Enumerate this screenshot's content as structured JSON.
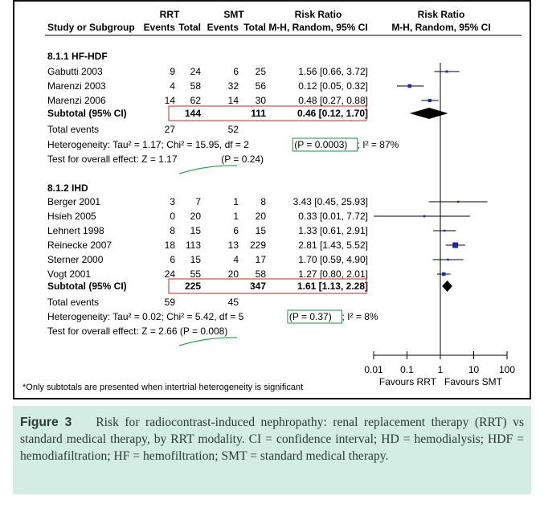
{
  "chart_data": {
    "type": "forest",
    "headers": {
      "group1": "RRT",
      "group2": "SMT",
      "col_risk": "Risk Ratio",
      "col_plot": "Risk Ratio",
      "study": "Study or Subgroup",
      "events": "Events",
      "total": "Total",
      "method": "M-H, Random, 95% CI"
    },
    "x_axis": {
      "scale": "log",
      "ticks": [
        0.01,
        0.1,
        1,
        10,
        100
      ],
      "tick_labels": [
        "0.01",
        "0.1",
        "1",
        "10",
        "100"
      ],
      "favours_left": "Favours RRT",
      "favours_right": "Favours SMT"
    },
    "subgroups": [
      {
        "title": "8.1.1 HF-HDF",
        "studies": [
          {
            "name": "Gabutti 2003",
            "e1": "9",
            "n1": "24",
            "e2": "6",
            "n2": "25",
            "ci_text": "1.56 [0.66, 3.72]",
            "rr": 1.56,
            "lo": 0.66,
            "hi": 3.72
          },
          {
            "name": "Marenzi 2003",
            "e1": "4",
            "n1": "58",
            "e2": "32",
            "n2": "56",
            "ci_text": "0.12 [0.05, 0.32]",
            "rr": 0.12,
            "lo": 0.05,
            "hi": 0.32
          },
          {
            "name": "Marenzi 2006",
            "e1": "14",
            "n1": "62",
            "e2": "14",
            "n2": "30",
            "ci_text": "0.48 [0.27, 0.88]",
            "rr": 0.48,
            "lo": 0.27,
            "hi": 0.88
          }
        ],
        "subtotal": {
          "label": "Subtotal (95% CI)",
          "n1": "144",
          "n2": "111",
          "ci_text": "0.46 [0.12, 1.70]",
          "rr": 0.46,
          "lo": 0.12,
          "hi": 1.7
        },
        "total_events": {
          "label": "Total events",
          "e1": "27",
          "e2": "52"
        },
        "heterogeneity": {
          "before": "Heterogeneity: Tau² = 1.17; Chi² = 15.95, df = 2",
          "p": "(P = 0.0003)",
          "after": "; I² = 87%"
        },
        "overall": {
          "before": "Test for overall effect: Z = 1.17 ",
          "p": "(P = 0.24)"
        }
      },
      {
        "title": "8.1.2 IHD",
        "studies": [
          {
            "name": "Berger 2001",
            "e1": "3",
            "n1": "7",
            "e2": "1",
            "n2": "8",
            "ci_text": "3.43 [0.45, 25.93]",
            "rr": 3.43,
            "lo": 0.45,
            "hi": 25.93
          },
          {
            "name": "Hsieh 2005",
            "e1": "0",
            "n1": "20",
            "e2": "1",
            "n2": "20",
            "ci_text": "0.33 [0.01, 7.72]",
            "rr": 0.33,
            "lo": 0.01,
            "hi": 7.72
          },
          {
            "name": "Lehnert 1998",
            "e1": "8",
            "n1": "15",
            "e2": "6",
            "n2": "15",
            "ci_text": "1.33 [0.61, 2.91]",
            "rr": 1.33,
            "lo": 0.61,
            "hi": 2.91
          },
          {
            "name": "Reinecke 2007",
            "e1": "18",
            "n1": "113",
            "e2": "13",
            "n2": "229",
            "ci_text": "2.81 [1.43, 5.52]",
            "rr": 2.81,
            "lo": 1.43,
            "hi": 5.52
          },
          {
            "name": "Sterner 2000",
            "e1": "6",
            "n1": "15",
            "e2": "4",
            "n2": "17",
            "ci_text": "1.70 [0.59, 4.90]",
            "rr": 1.7,
            "lo": 0.59,
            "hi": 4.9
          },
          {
            "name": "Vogt 2001",
            "e1": "24",
            "n1": "55",
            "e2": "20",
            "n2": "58",
            "ci_text": "1.27 [0.80, 2.01]",
            "rr": 1.27,
            "lo": 0.8,
            "hi": 2.01
          }
        ],
        "subtotal": {
          "label": "Subtotal (95% CI)",
          "n1": "225",
          "n2": "347",
          "ci_text": "1.61 [1.13, 2.28]",
          "rr": 1.61,
          "lo": 1.13,
          "hi": 2.28
        },
        "total_events": {
          "label": "Total events",
          "e1": "59",
          "e2": "45"
        },
        "heterogeneity": {
          "before": "Heterogeneity: Tau² = 0.02; Chi² = 5.42, df = 5",
          "p": "(P = 0.37)",
          "after": "; I² = 8%"
        },
        "overall": {
          "before": "Test for overall effect: Z = 2.66 (P = 0.008)",
          "p": ""
        }
      }
    ],
    "footnote": "*Only subtotals are presented when intertrial heterogeneity is significant",
    "colors": {
      "marker": "#1f27a8",
      "diamond": "#000000",
      "box_red": "#c0282d",
      "box_green": "#2a8a4a",
      "annotation_green": "#2fa04b",
      "caption_bg": "#d3ede4"
    }
  },
  "caption": {
    "label": "Figure 3",
    "text": "Risk for radiocontrast-induced nephropathy: renal replacement therapy (RRT) vs standard medical therapy, by RRT modality. CI = confidence interval; HD = hemodialysis; HDF = hemodiafiltration; HF = hemofiltration; SMT = standard medical therapy."
  }
}
